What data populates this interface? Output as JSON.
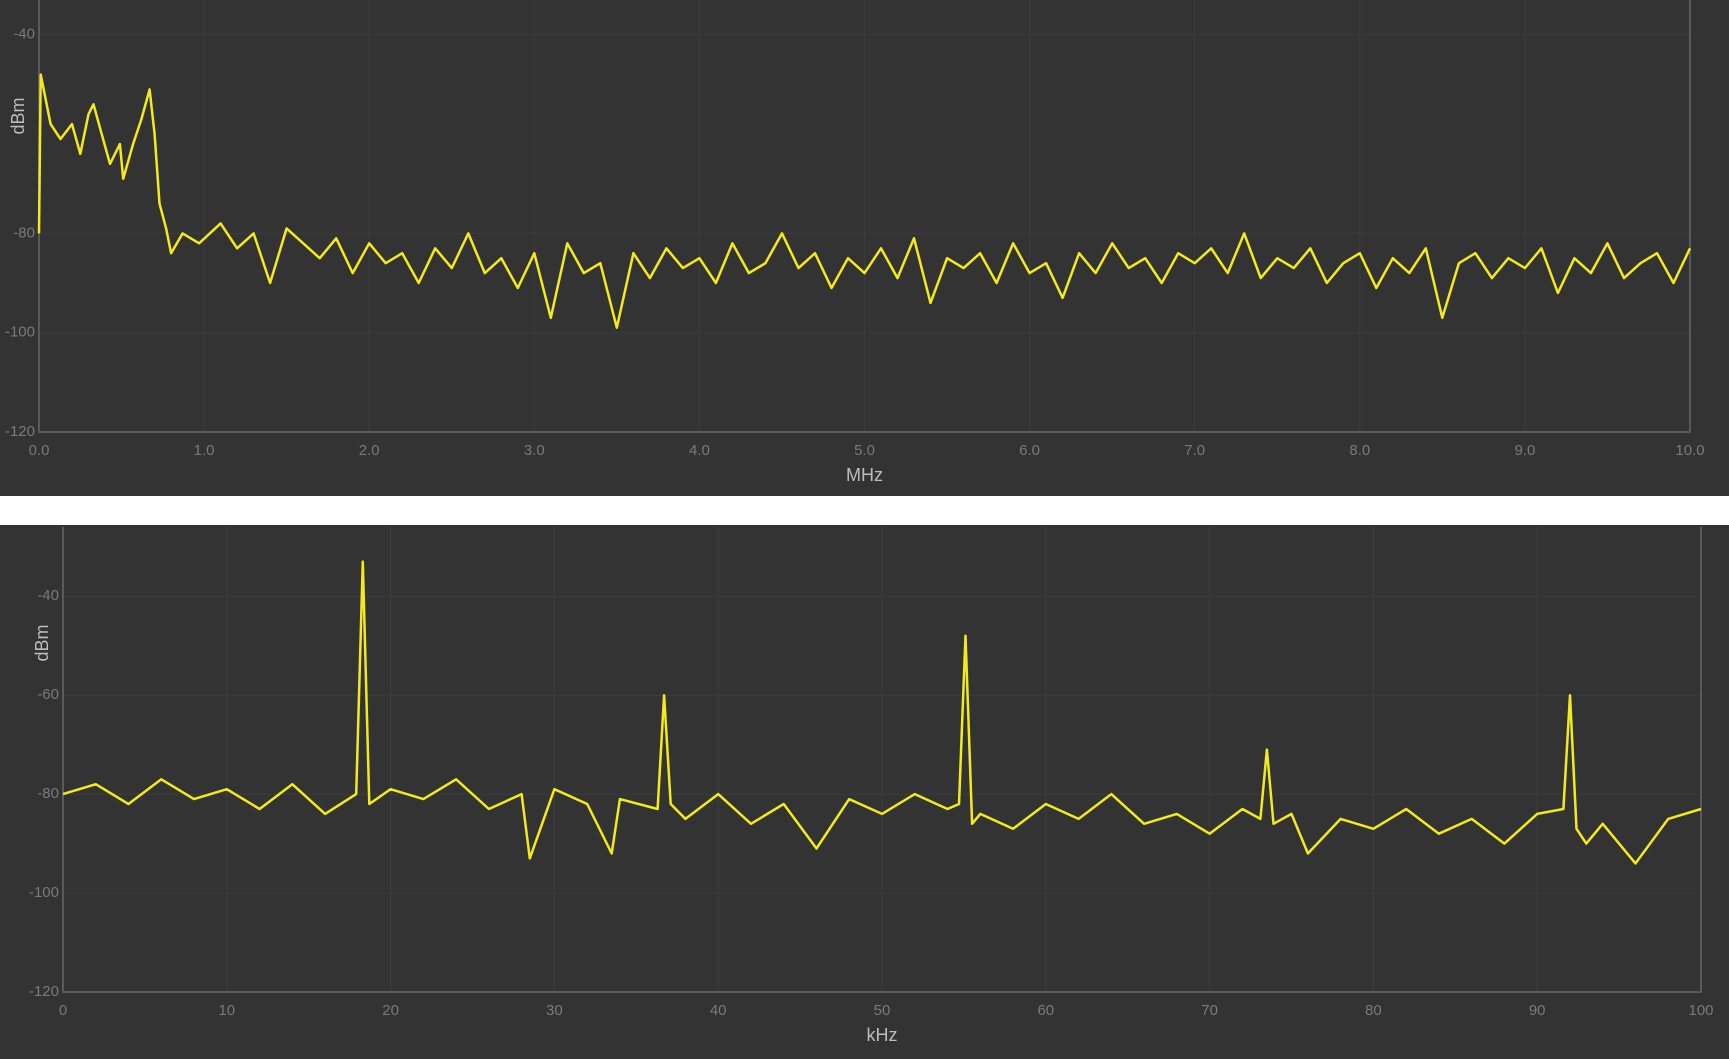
{
  "chart_data": [
    {
      "type": "line",
      "xlabel": "MHz",
      "ylabel": "dBm",
      "color": "#f2ea1d",
      "grid": true,
      "xlim": [
        0,
        10
      ],
      "ylim": [
        -120,
        -33
      ],
      "xticks": [
        {
          "value": 0,
          "label": "0.0"
        },
        {
          "value": 1,
          "label": "1.0"
        },
        {
          "value": 2,
          "label": "2.0"
        },
        {
          "value": 3,
          "label": "3.0"
        },
        {
          "value": 4,
          "label": "4.0"
        },
        {
          "value": 5,
          "label": "5.0"
        },
        {
          "value": 6,
          "label": "6.0"
        },
        {
          "value": 7,
          "label": "7.0"
        },
        {
          "value": 8,
          "label": "8.0"
        },
        {
          "value": 9,
          "label": "9.0"
        },
        {
          "value": 10,
          "label": "10.0"
        }
      ],
      "yticks": [
        -40,
        -80,
        -100,
        -120
      ],
      "x": [
        0,
        0.01,
        0.07,
        0.13,
        0.2,
        0.25,
        0.3,
        0.33,
        0.38,
        0.43,
        0.49,
        0.51,
        0.57,
        0.62,
        0.67,
        0.7,
        0.73,
        0.77,
        0.8,
        0.87,
        0.97,
        1.1,
        1.2,
        1.3,
        1.4,
        1.5,
        1.6,
        1.7,
        1.8,
        1.9,
        2.0,
        2.1,
        2.2,
        2.3,
        2.4,
        2.5,
        2.6,
        2.7,
        2.8,
        2.9,
        3.0,
        3.1,
        3.2,
        3.3,
        3.4,
        3.5,
        3.6,
        3.7,
        3.8,
        3.9,
        4.0,
        4.1,
        4.2,
        4.3,
        4.4,
        4.5,
        4.6,
        4.7,
        4.8,
        4.9,
        5.0,
        5.1,
        5.2,
        5.3,
        5.4,
        5.5,
        5.6,
        5.7,
        5.8,
        5.9,
        6.0,
        6.1,
        6.2,
        6.3,
        6.4,
        6.5,
        6.6,
        6.7,
        6.8,
        6.9,
        7.0,
        7.1,
        7.2,
        7.3,
        7.4,
        7.5,
        7.6,
        7.7,
        7.8,
        7.9,
        8.0,
        8.1,
        8.2,
        8.3,
        8.4,
        8.5,
        8.6,
        8.7,
        8.8,
        8.9,
        9.0,
        9.1,
        9.2,
        9.3,
        9.4,
        9.5,
        9.6,
        9.7,
        9.8,
        9.9,
        10.0
      ],
      "values": [
        -80,
        -48,
        -58,
        -61,
        -58,
        -64,
        -56,
        -54,
        -60,
        -66,
        -62,
        -69,
        -62,
        -57,
        -51,
        -60,
        -74,
        -79,
        -84,
        -80,
        -82,
        -78,
        -83,
        -80,
        -90,
        -79,
        -82,
        -85,
        -81,
        -88,
        -82,
        -86,
        -84,
        -90,
        -83,
        -87,
        -80,
        -88,
        -85,
        -91,
        -84,
        -97,
        -82,
        -88,
        -86,
        -99,
        -84,
        -89,
        -83,
        -87,
        -85,
        -90,
        -82,
        -88,
        -86,
        -80,
        -87,
        -84,
        -91,
        -85,
        -88,
        -83,
        -89,
        -81,
        -94,
        -85,
        -87,
        -84,
        -90,
        -82,
        -88,
        -86,
        -93,
        -84,
        -88,
        -82,
        -87,
        -85,
        -90,
        -84,
        -86,
        -83,
        -88,
        -80,
        -89,
        -85,
        -87,
        -83,
        -90,
        -86,
        -84,
        -91,
        -85,
        -88,
        -83,
        -97,
        -86,
        -84,
        -89,
        -85,
        -87,
        -83,
        -92,
        -85,
        -88,
        -82,
        -89,
        -86,
        -84,
        -90,
        -83
      ]
    },
    {
      "type": "line",
      "xlabel": "kHz",
      "ylabel": "dBm",
      "color": "#f2ea1d",
      "grid": true,
      "xlim": [
        0,
        100
      ],
      "ylim": [
        -120,
        -26
      ],
      "xticks": [
        0,
        10,
        20,
        30,
        40,
        50,
        60,
        70,
        80,
        90,
        100
      ],
      "yticks": [
        -40,
        -60,
        -80,
        -100,
        -120
      ],
      "x": [
        0,
        2,
        4,
        6,
        8,
        10,
        12,
        14,
        16,
        17.9,
        18.3,
        18.7,
        20,
        22,
        24,
        26,
        28,
        28.5,
        30,
        32,
        33.5,
        34,
        36.3,
        36.7,
        37.1,
        38,
        40,
        42,
        44,
        46,
        48,
        50,
        52,
        54,
        54.7,
        55.1,
        55.5,
        56,
        58,
        60,
        62,
        64,
        66,
        68,
        70,
        72,
        73.1,
        73.5,
        73.9,
        75,
        76,
        78,
        80,
        82,
        84,
        86,
        88,
        90,
        91.6,
        92,
        92.4,
        93,
        94,
        96,
        98,
        100
      ],
      "values": [
        -80,
        -78,
        -82,
        -77,
        -81,
        -79,
        -83,
        -78,
        -84,
        -80,
        -33,
        -82,
        -79,
        -81,
        -77,
        -83,
        -80,
        -93,
        -79,
        -82,
        -92,
        -81,
        -83,
        -60,
        -82,
        -85,
        -80,
        -86,
        -82,
        -91,
        -81,
        -84,
        -80,
        -83,
        -82,
        -48,
        -86,
        -84,
        -87,
        -82,
        -85,
        -80,
        -86,
        -84,
        -88,
        -83,
        -85,
        -71,
        -86,
        -84,
        -92,
        -85,
        -87,
        -83,
        -88,
        -85,
        -90,
        -84,
        -83,
        -60,
        -87,
        -90,
        -86,
        -94,
        -85,
        -83
      ]
    }
  ]
}
